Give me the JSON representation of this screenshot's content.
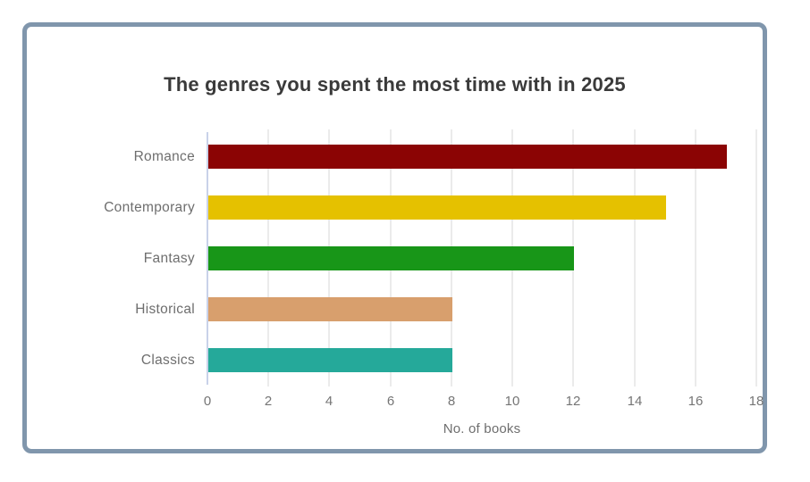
{
  "card": {
    "border_color": "#8096AC",
    "background_color": "#ffffff"
  },
  "chart_data": {
    "type": "bar",
    "orientation": "horizontal",
    "title": "The genres you spent the most time with in 2025",
    "categories": [
      "Romance",
      "Contemporary",
      "Fantasy",
      "Historical",
      "Classics"
    ],
    "values": [
      17,
      15,
      12,
      8,
      8
    ],
    "bar_colors": [
      "#8B0404",
      "#E5C100",
      "#189618",
      "#D89F6D",
      "#25A99A"
    ],
    "xlabel": "No. of books",
    "ylabel": "",
    "xlim": [
      0,
      18
    ],
    "x_ticks": [
      0,
      2,
      4,
      6,
      8,
      10,
      12,
      14,
      16,
      18
    ],
    "grid": true,
    "legend": false,
    "gridline_color": "#ebebeb",
    "zero_line_color": "#c9d2e9",
    "title_color": "#3a3a3a",
    "category_label_color": "#6e6e6e",
    "tick_label_color": "#757575"
  }
}
